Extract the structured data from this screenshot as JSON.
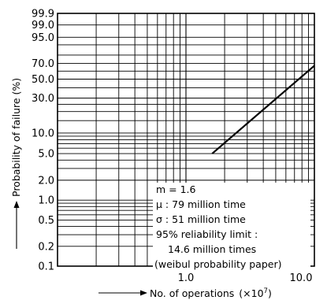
{
  "chart_data": {
    "type": "line",
    "paper": "weibull probability paper",
    "xlabel": "No. of operations",
    "xlabel_unit": "(×10",
    "xlabel_exp": "7",
    "xlabel_close": ")",
    "ylabel": "Probability of failure (%)",
    "xscale": "log",
    "yscale": "weibull",
    "xlim": [
      0.1,
      10.0
    ],
    "ylim": [
      0.1,
      99.9
    ],
    "x_tick_labels": [
      {
        "value": 1.0,
        "label": "1.0"
      },
      {
        "value": 10.0,
        "label": "10.0"
      }
    ],
    "y_tick_labels": [
      {
        "value": 99.9,
        "label": "99.9"
      },
      {
        "value": 99.0,
        "label": "99.0"
      },
      {
        "value": 95.0,
        "label": "95.0"
      },
      {
        "value": 70.0,
        "label": "70.0"
      },
      {
        "value": 50.0,
        "label": "50.0"
      },
      {
        "value": 30.0,
        "label": "30.0"
      },
      {
        "value": 10.0,
        "label": "10.0"
      },
      {
        "value": 5.0,
        "label": "5.0"
      },
      {
        "value": 2.0,
        "label": "2.0"
      },
      {
        "value": 1.0,
        "label": "1.0"
      },
      {
        "value": 0.5,
        "label": "0.5"
      },
      {
        "value": 0.2,
        "label": "0.2"
      },
      {
        "value": 0.1,
        "label": "0.1"
      }
    ],
    "series": [
      {
        "x": [
          1.6,
          10.0
        ],
        "y": [
          5.0,
          67.0
        ]
      }
    ],
    "annotations": {
      "m": "m = 1.6",
      "mu": "μ : 79 million time",
      "sigma": "σ : 51 million time",
      "limit_1": "95% reliability limit :",
      "limit_2": "14.6 million times",
      "paper": "(weibul probability paper)"
    },
    "grid": true,
    "line_color": "#000000"
  }
}
